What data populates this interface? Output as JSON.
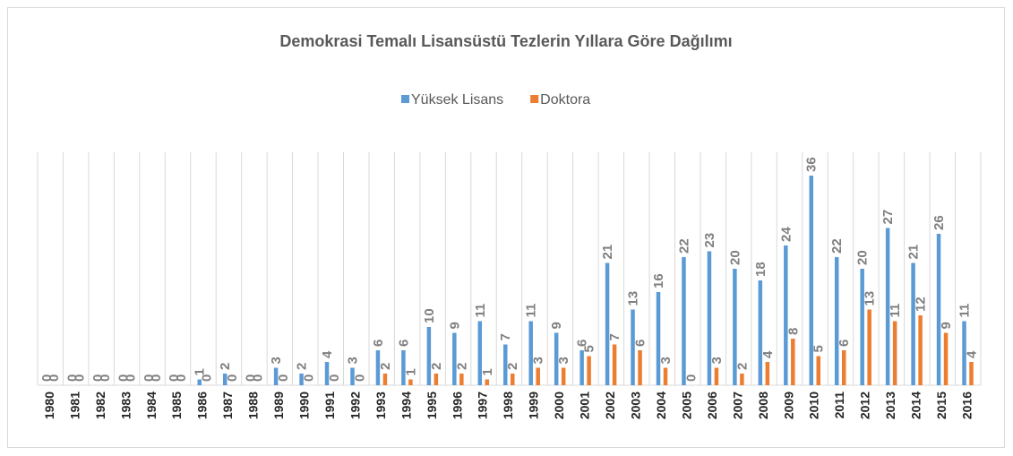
{
  "chart_data": {
    "type": "bar",
    "title": "Demokrasi Temalı Lisansüstü Tezlerin Yıllara Göre Dağılımı",
    "categories": [
      "1980",
      "1981",
      "1982",
      "1983",
      "1984",
      "1985",
      "1986",
      "1987",
      "1988",
      "1989",
      "1990",
      "1991",
      "1992",
      "1993",
      "1994",
      "1995",
      "1996",
      "1997",
      "1998",
      "1999",
      "2000",
      "2001",
      "2002",
      "2003",
      "2004",
      "2005",
      "2006",
      "2007",
      "2008",
      "2009",
      "2010",
      "2011",
      "2012",
      "2013",
      "2014",
      "2015",
      "2016"
    ],
    "series": [
      {
        "name": "Yüksek Lisans",
        "color": "#5b9bd5",
        "values": [
          0,
          0,
          0,
          0,
          0,
          0,
          1,
          2,
          0,
          3,
          2,
          4,
          3,
          6,
          6,
          10,
          9,
          11,
          7,
          11,
          9,
          6,
          21,
          13,
          16,
          22,
          23,
          20,
          18,
          24,
          36,
          22,
          20,
          27,
          21,
          26,
          11
        ]
      },
      {
        "name": "Doktora",
        "color": "#ed7d31",
        "values": [
          0,
          0,
          0,
          0,
          0,
          0,
          0,
          0,
          0,
          0,
          0,
          0,
          0,
          2,
          1,
          2,
          2,
          1,
          2,
          3,
          3,
          5,
          7,
          6,
          3,
          0,
          3,
          2,
          4,
          8,
          5,
          6,
          13,
          11,
          12,
          9,
          4
        ]
      }
    ],
    "ylim": [
      0,
      40
    ],
    "grid": true,
    "legend": "top"
  }
}
